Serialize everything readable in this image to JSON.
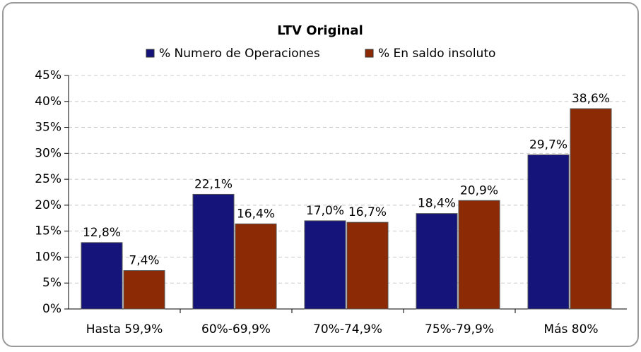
{
  "chart_data": {
    "type": "bar",
    "title": "LTV Original",
    "categories": [
      "Hasta 59,9%",
      "60%-69,9%",
      "70%-74,9%",
      "75%-79,9%",
      "Más 80%"
    ],
    "series": [
      {
        "name": "% Numero de Operaciones",
        "color": "#14147a",
        "values": [
          12.8,
          22.1,
          17.0,
          18.4,
          29.7
        ],
        "value_labels": [
          "12,8%",
          "22,1%",
          "17,0%",
          "18,4%",
          "29,7%"
        ]
      },
      {
        "name": "% En saldo insoluto",
        "color": "#8c2a05",
        "values": [
          7.4,
          16.4,
          16.7,
          20.9,
          38.6
        ],
        "value_labels": [
          "7,4%",
          "16,4%",
          "16,7%",
          "20,9%",
          "38,6%"
        ]
      }
    ],
    "ylim": [
      0,
      45
    ],
    "yticks": [
      {
        "value": 0,
        "label": "0%"
      },
      {
        "value": 5,
        "label": "5%"
      },
      {
        "value": 10,
        "label": "10%"
      },
      {
        "value": 15,
        "label": "15%"
      },
      {
        "value": 20,
        "label": "20%"
      },
      {
        "value": 25,
        "label": "25%"
      },
      {
        "value": 30,
        "label": "30%"
      },
      {
        "value": 35,
        "label": "35%"
      },
      {
        "value": 40,
        "label": "40%"
      },
      {
        "value": 45,
        "label": "45%"
      }
    ],
    "grid": true,
    "legend": "top"
  }
}
